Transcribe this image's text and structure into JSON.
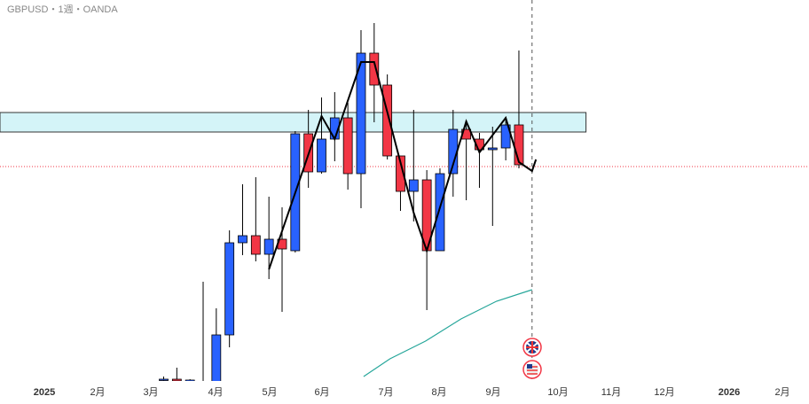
{
  "chart_data": {
    "type": "candlestick",
    "title": "GBPUSD・1週・OANDA",
    "up_color": "#2962ff",
    "down_color": "#f23645",
    "open": [
      1.2984,
      1.2986,
      1.2982,
      1.2962,
      1.2962,
      1.3086,
      1.3294,
      1.331,
      1.3268,
      1.3302,
      1.3276,
      1.354,
      1.3454,
      1.3528,
      1.3576,
      1.345,
      1.3722,
      1.365,
      1.349,
      1.341,
      1.3436,
      1.3276,
      1.345,
      1.355,
      1.3528,
      1.3504,
      1.3508,
      1.356
    ],
    "high": [
      1.2992,
      1.3012,
      1.2986,
      1.3206,
      1.3146,
      1.3322,
      1.3426,
      1.3442,
      1.3398,
      1.3374,
      1.3546,
      1.3594,
      1.3622,
      1.3634,
      1.361,
      1.3774,
      1.379,
      1.3674,
      1.349,
      1.3594,
      1.3458,
      1.3462,
      1.3594,
      1.3568,
      1.3542,
      1.3556,
      1.3578,
      1.3728
    ],
    "low": [
      1.298,
      1.2978,
      1.2978,
      1.2952,
      1.2942,
      1.3058,
      1.3266,
      1.3252,
      1.3212,
      1.3138,
      1.3272,
      1.3418,
      1.345,
      1.3478,
      1.3414,
      1.3372,
      1.3566,
      1.3482,
      1.3366,
      1.3342,
      1.3142,
      1.3276,
      1.3398,
      1.339,
      1.3418,
      1.3332,
      1.348,
      1.3462
    ],
    "close": [
      1.2986,
      1.2982,
      1.2984,
      1.2978,
      1.3086,
      1.3294,
      1.331,
      1.3268,
      1.3302,
      1.328,
      1.354,
      1.3454,
      1.3528,
      1.3576,
      1.345,
      1.3722,
      1.365,
      1.349,
      1.341,
      1.3436,
      1.3276,
      1.345,
      1.355,
      1.3528,
      1.3504,
      1.3508,
      1.356,
      1.347
    ],
    "xlim": [
      -12.44,
      49.05
    ],
    "ylim": [
      1.2982,
      1.3842
    ],
    "x_labels": [
      "2025",
      "2月",
      "3月",
      "4月",
      "5月",
      "6月",
      "7月",
      "8月",
      "9月",
      "10月",
      "11月",
      "12月",
      "2026",
      "2月"
    ],
    "zigzag": {
      "color": "#000000",
      "x": [
        8,
        12,
        13,
        15,
        16,
        19,
        20,
        23,
        24,
        26,
        27,
        28,
        28.3
      ],
      "values": [
        1.3234,
        1.358,
        1.3528,
        1.3702,
        1.3702,
        1.3362,
        1.3276,
        1.3568,
        1.3498,
        1.3576,
        1.3476,
        1.3456,
        1.3482
      ]
    },
    "moving_average": {
      "color": "#26a69a",
      "x": [
        15.2,
        17.2,
        19.9,
        22.6,
        25.3,
        28
      ],
      "values": [
        1.2992,
        1.3032,
        1.3072,
        1.3122,
        1.3162,
        1.3188
      ]
    },
    "zone": {
      "low": 1.3544,
      "high": 1.3588,
      "x_end": 32.1,
      "color": "#d4f4f8"
    },
    "current_price": 1.3466,
    "cursor_x": 28
  }
}
